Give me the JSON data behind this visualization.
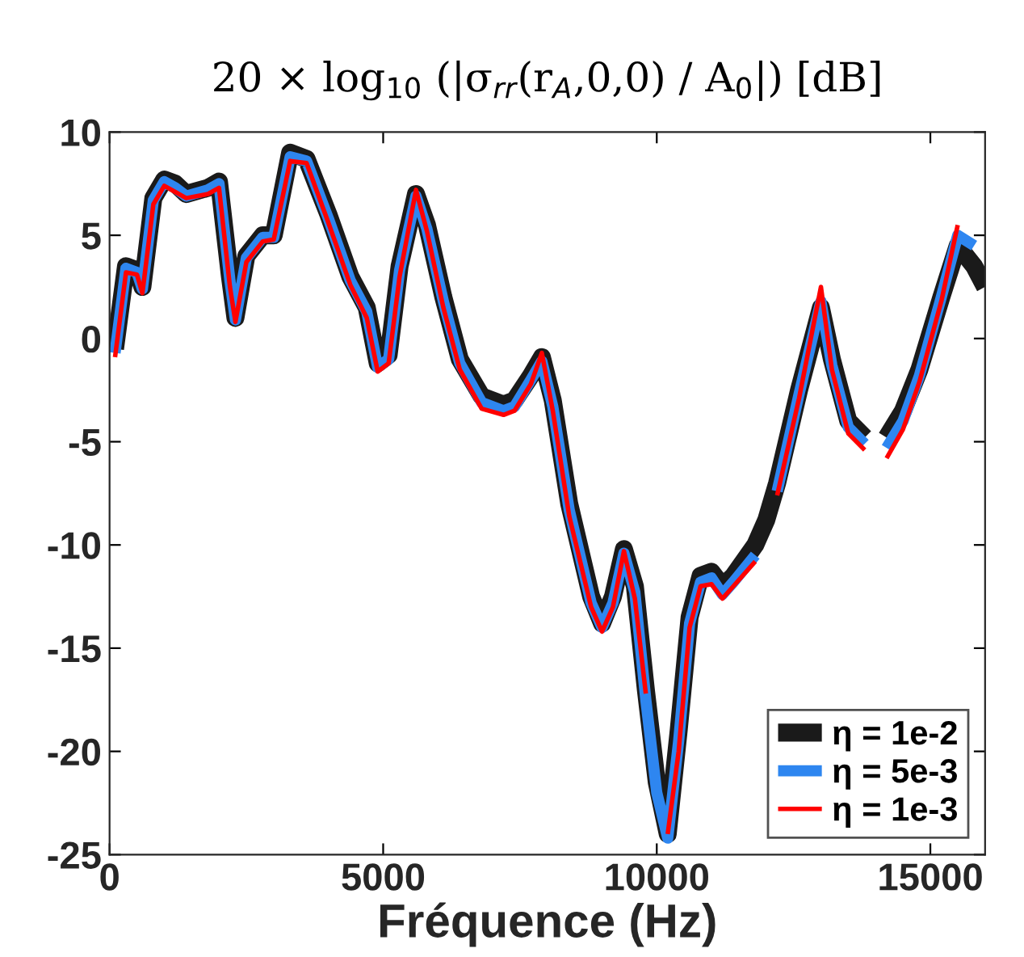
{
  "chart_data": {
    "type": "line",
    "title": "20 × log$_{10}$ (|σ$_{rr}$(r$_{A}$,0,0) / A$_{0}$|) [dB]",
    "xlabel": "Fréquence (Hz)",
    "x": [
      100,
      300,
      500,
      600,
      800,
      1000,
      1200,
      1400,
      1800,
      2000,
      2200,
      2300,
      2500,
      2800,
      3000,
      3300,
      3600,
      4000,
      4400,
      4700,
      4900,
      5100,
      5300,
      5600,
      5800,
      6100,
      6400,
      6800,
      7200,
      7400,
      7700,
      7900,
      8100,
      8400,
      8800,
      9000,
      9200,
      9400,
      9600,
      9800,
      10000,
      10200,
      10400,
      10600,
      10800,
      11000,
      11200,
      11400,
      11800,
      12000,
      12200,
      12600,
      13000,
      13200,
      13500,
      13800,
      14000,
      14200,
      14500,
      14800,
      15200,
      15500,
      15800,
      16000
    ],
    "series": [
      {
        "name": "η = 1e-2",
        "color": "#1a1a1a",
        "values": [
          -0.5,
          3.5,
          3.3,
          2.5,
          6.8,
          7.7,
          7.5,
          7.0,
          7.3,
          7.6,
          3.0,
          1.0,
          4.0,
          5.0,
          5.0,
          9.0,
          8.7,
          6.0,
          3.0,
          1.5,
          -1.2,
          -0.8,
          3.5,
          7.0,
          5.5,
          2.0,
          -1.0,
          -2.8,
          -3.2,
          -3.0,
          -1.8,
          -0.9,
          -3.0,
          -8.0,
          -12.5,
          -13.8,
          -12.5,
          -10.2,
          -12.0,
          -17.0,
          -21.5,
          -24.0,
          -19.0,
          -13.5,
          -11.5,
          -11.3,
          -12.0,
          -11.5,
          -10.0,
          -8.8,
          -7.0,
          -2.5,
          1.5,
          -1.0,
          -4.0,
          -4.8,
          null,
          -4.8,
          -3.5,
          -1.5,
          2.0,
          4.5,
          3.5,
          2.5
        ]
      },
      {
        "name": "η = 5e-3",
        "color": "#2e86f0",
        "values": [
          -0.7,
          3.4,
          3.2,
          2.4,
          6.7,
          7.6,
          7.3,
          6.9,
          7.2,
          7.5,
          2.8,
          0.9,
          3.9,
          4.9,
          4.9,
          8.8,
          8.6,
          5.8,
          2.8,
          1.3,
          -1.4,
          -1.0,
          3.3,
          6.9,
          5.3,
          1.8,
          -1.2,
          -3.1,
          -3.5,
          -3.3,
          -2.0,
          -1.1,
          -3.3,
          -8.3,
          -12.8,
          -14.0,
          -12.8,
          -10.4,
          -12.3,
          -17.5,
          -22.0,
          -24.2,
          -19.5,
          -13.8,
          -11.8,
          -11.6,
          -12.4,
          -11.8,
          -10.5,
          null,
          -7.4,
          -2.7,
          1.8,
          -1.3,
          -4.3,
          -5.1,
          null,
          -5.3,
          -4.0,
          -1.8,
          2.0,
          5.0,
          4.5,
          null
        ]
      },
      {
        "name": "η = 1e-3",
        "color": "#ff0000",
        "values": [
          -0.9,
          3.2,
          3.1,
          2.2,
          6.5,
          7.4,
          7.1,
          6.8,
          7.0,
          7.3,
          2.5,
          0.8,
          3.7,
          4.7,
          4.8,
          8.6,
          8.5,
          5.6,
          2.6,
          1.0,
          -1.6,
          -1.2,
          3.0,
          7.2,
          5.2,
          1.5,
          -1.5,
          -3.4,
          -3.7,
          -3.5,
          -2.2,
          -0.7,
          -3.5,
          -8.6,
          -13.0,
          -14.2,
          -13.0,
          -10.3,
          -12.6,
          -17.2,
          null,
          -24.0,
          -20.0,
          -14.0,
          -12.0,
          -11.9,
          -12.6,
          -12.0,
          -10.8,
          null,
          -7.6,
          -2.9,
          2.5,
          -1.5,
          -4.6,
          -5.4,
          null,
          -5.8,
          -4.4,
          -2.1,
          1.8,
          5.5,
          null,
          null
        ]
      }
    ],
    "xlim": [
      0,
      16000
    ],
    "ylim": [
      -25,
      10
    ],
    "xticks": [
      0,
      5000,
      10000,
      15000
    ],
    "yticks": [
      -25,
      -20,
      -15,
      -10,
      -5,
      0,
      5,
      10
    ],
    "legend": "bottom right",
    "grid": false
  }
}
